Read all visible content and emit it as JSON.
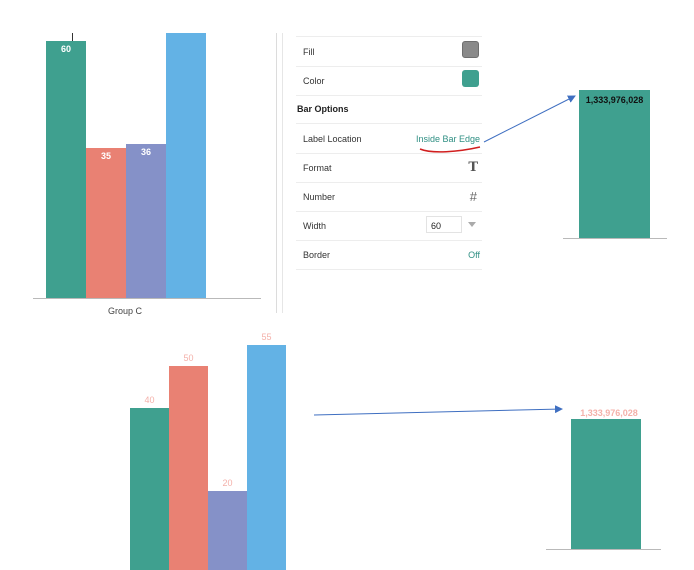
{
  "top_chart": {
    "group_label": "Group C",
    "bars": [
      {
        "value": 60,
        "label": "60",
        "color": "#3fa08f"
      },
      {
        "value": 35,
        "label": "35",
        "color": "#e98173"
      },
      {
        "value": 36,
        "label": "36",
        "color": "#8591c8"
      },
      {
        "value": null,
        "label": "",
        "color": "#63b2e5"
      }
    ]
  },
  "panel": {
    "fill_label": "Fill",
    "fill_color": "#8a8a8a",
    "color_label": "Color",
    "color_value": "#3fa08f",
    "section_title": "Bar Options",
    "label_location_label": "Label Location",
    "label_location_value": "Inside Bar Edge",
    "format_label": "Format",
    "format_icon": "T",
    "number_label": "Number",
    "number_icon": "#",
    "width_label": "Width",
    "width_value": "60",
    "border_label": "Border",
    "border_value": "Off"
  },
  "example_top": {
    "value_label": "1,333,976,028"
  },
  "bottom_chart": {
    "bars": [
      {
        "value": 40,
        "label": "40",
        "color": "#3fa08f"
      },
      {
        "value": 50,
        "label": "50",
        "color": "#e98173"
      },
      {
        "value": 20,
        "label": "20",
        "color": "#8591c8"
      },
      {
        "value": 55,
        "label": "55",
        "color": "#63b2e5"
      }
    ]
  },
  "example_bottom": {
    "value_label": "1,333,976,028"
  }
}
